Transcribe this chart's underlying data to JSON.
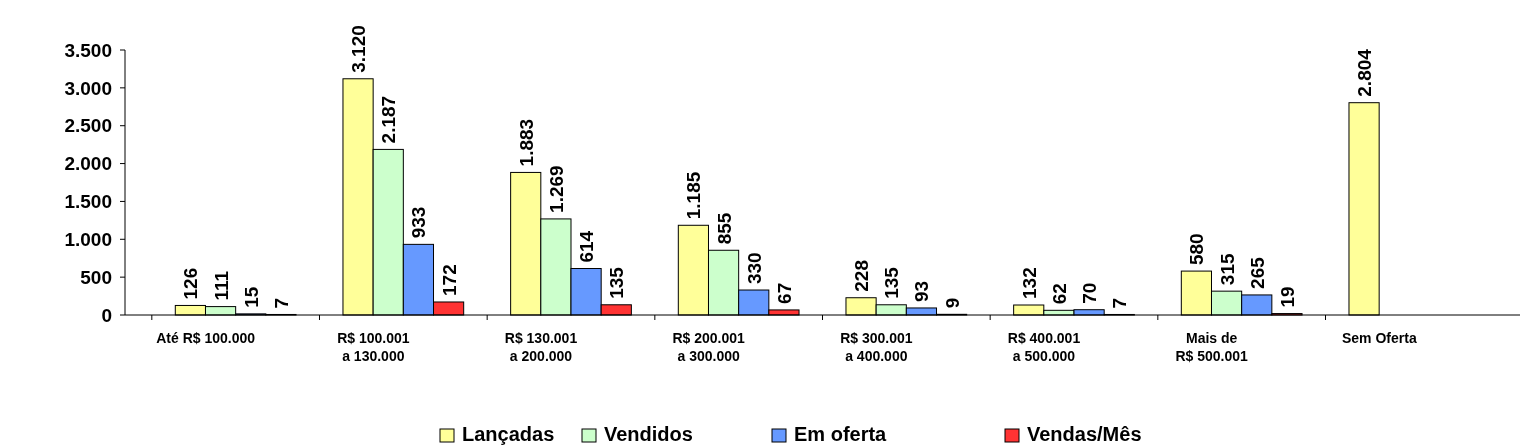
{
  "chart_data": {
    "type": "bar",
    "categories": [
      "Até R$ 100.000",
      "R$ 100.001\na 130.000",
      "R$ 130.001\na 200.000",
      "R$ 200.001\na 300.000",
      "R$ 300.001\na 400.000",
      "R$ 400.001\na 500.000",
      "Mais de\nR$ 500.001",
      "Sem Oferta"
    ],
    "series": [
      {
        "name": "Lançadas",
        "color": "#ffff99",
        "values": [
          126,
          3120,
          1883,
          1185,
          228,
          132,
          580,
          2804
        ],
        "value_labels": [
          "126",
          "3.120",
          "1.883",
          "1.185",
          "228",
          "132",
          "580",
          "2.804"
        ]
      },
      {
        "name": "Vendidos",
        "color": "#ccffcc",
        "values": [
          111,
          2187,
          1269,
          855,
          135,
          62,
          315,
          null
        ],
        "value_labels": [
          "111",
          "2.187",
          "1.269",
          "855",
          "135",
          "62",
          "315",
          null
        ]
      },
      {
        "name": "Em oferta",
        "color": "#6699ff",
        "values": [
          15,
          933,
          614,
          330,
          93,
          70,
          265,
          null
        ],
        "value_labels": [
          "15",
          "933",
          "614",
          "330",
          "93",
          "70",
          "265",
          null
        ]
      },
      {
        "name": "Vendas/Mês",
        "color": "#ff3333",
        "values": [
          7,
          172,
          135,
          67,
          9,
          7,
          19,
          null
        ],
        "value_labels": [
          "7",
          "172",
          "135",
          "67",
          "9",
          "7",
          "19",
          null
        ]
      }
    ],
    "ylim": [
      0,
      3500
    ],
    "yticks": [
      0,
      {
        "value": 500,
        "label": "500"
      },
      {
        "value": 1000,
        "label": "1.000"
      },
      {
        "value": 1500,
        "label": "1.500"
      },
      {
        "value": 2000,
        "label": "2.000"
      },
      {
        "value": 2500,
        "label": "2.500"
      },
      {
        "value": 3000,
        "label": "3.000"
      },
      {
        "value": 3500,
        "label": "3.500"
      }
    ],
    "grid": false,
    "legend": "bottom"
  }
}
